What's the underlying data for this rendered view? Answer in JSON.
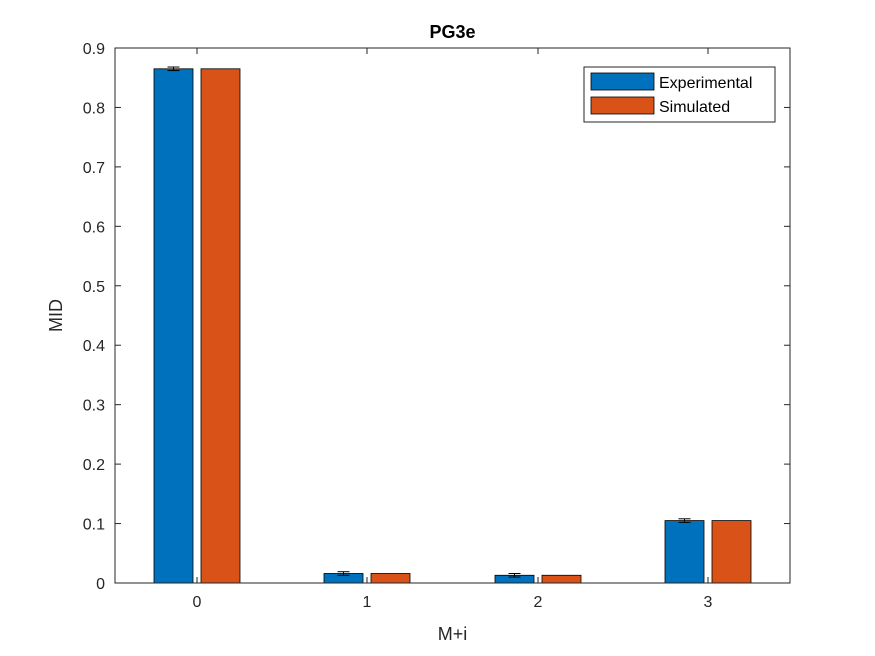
{
  "chart_data": {
    "type": "bar",
    "title": "PG3e",
    "xlabel": "M+i",
    "ylabel": "MID",
    "categories": [
      "0",
      "1",
      "2",
      "3"
    ],
    "ylim": [
      0,
      0.9
    ],
    "yticks": [
      "0",
      "0.1",
      "0.2",
      "0.3",
      "0.4",
      "0.5",
      "0.6",
      "0.7",
      "0.8",
      "0.9"
    ],
    "grid": false,
    "legend_position": "top-right",
    "series": [
      {
        "name": "Experimental",
        "color": "#0072BD",
        "values": [
          0.865,
          0.016,
          0.013,
          0.105
        ],
        "error": [
          0.003,
          0.003,
          0.003,
          0.003
        ]
      },
      {
        "name": "Simulated",
        "color": "#D95319",
        "values": [
          0.865,
          0.016,
          0.013,
          0.105
        ]
      }
    ]
  }
}
